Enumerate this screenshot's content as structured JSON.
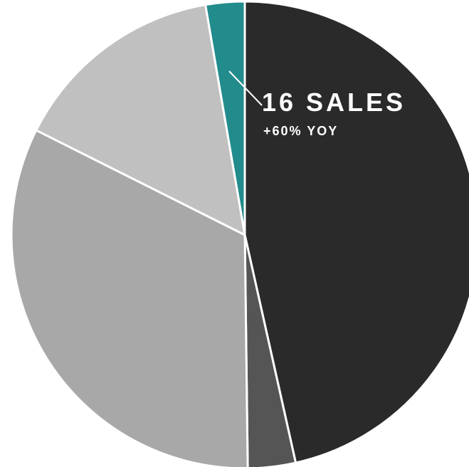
{
  "chart_data": {
    "type": "pie",
    "values": [
      46.5,
      3.3,
      32.6,
      14.9,
      2.7
    ],
    "colors": [
      "#2a2a2a",
      "#555555",
      "#a8a8a8",
      "#c0c0c0",
      "#228b8b"
    ],
    "annotation": {
      "title": "16 SALES",
      "subtitle": "+60% YOY"
    }
  }
}
